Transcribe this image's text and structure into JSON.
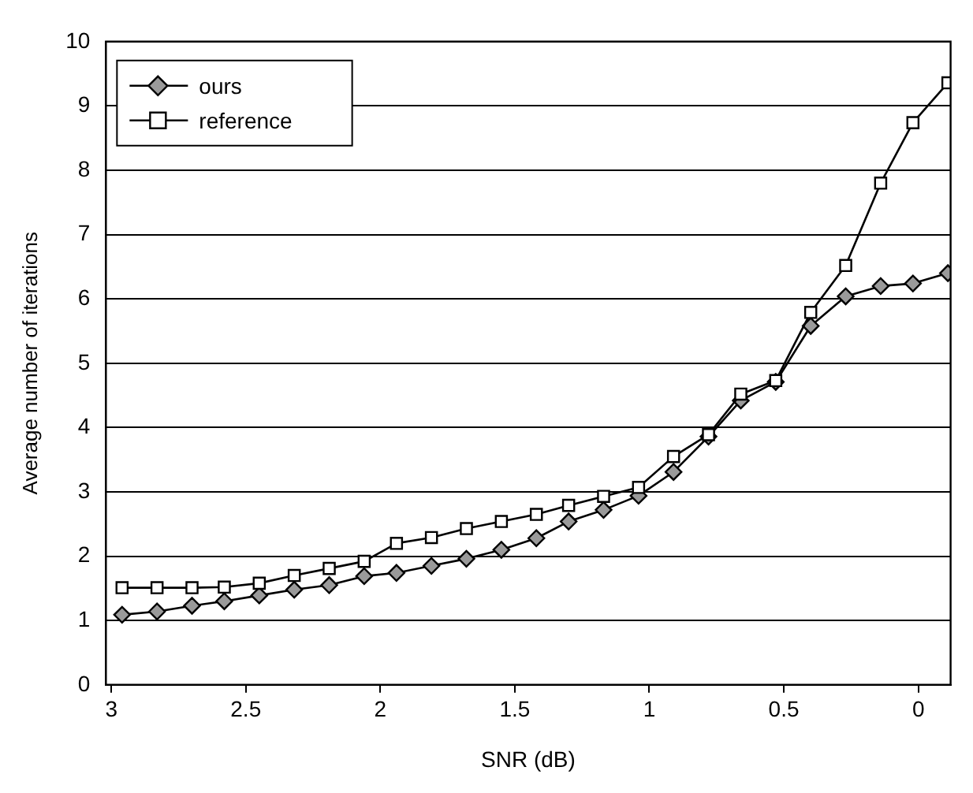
{
  "chart_data": {
    "type": "line",
    "xlabel": "SNR (dB)",
    "ylabel": "Average number of iterations",
    "x": [
      2.96,
      2.83,
      2.7,
      2.58,
      2.45,
      2.32,
      2.19,
      2.06,
      1.94,
      1.81,
      1.68,
      1.55,
      1.42,
      1.3,
      1.17,
      1.04,
      0.91,
      0.78,
      0.66,
      0.53,
      0.4,
      0.27,
      0.14,
      0.02,
      -0.11
    ],
    "series": [
      {
        "name": "ours",
        "color": "#000000",
        "marker": "diamond",
        "values": [
          1.09,
          1.14,
          1.23,
          1.3,
          1.39,
          1.48,
          1.55,
          1.69,
          1.74,
          1.85,
          1.96,
          2.1,
          2.28,
          2.54,
          2.72,
          2.94,
          3.31,
          3.86,
          4.42,
          4.71,
          5.58,
          6.04,
          6.2,
          6.24,
          6.4
        ]
      },
      {
        "name": "reference",
        "color": "#000000",
        "marker": "square",
        "values": [
          1.51,
          1.51,
          1.51,
          1.52,
          1.58,
          1.7,
          1.81,
          1.92,
          2.2,
          2.29,
          2.43,
          2.54,
          2.65,
          2.79,
          2.93,
          3.07,
          3.55,
          3.89,
          4.52,
          4.73,
          5.79,
          6.52,
          7.8,
          8.74,
          9.36
        ]
      }
    ],
    "xlim": [
      3.02,
      -0.12
    ],
    "xticks": [
      3,
      2.5,
      2,
      1.5,
      1,
      0.5,
      0
    ],
    "ylim": [
      0,
      10
    ],
    "yticks": [
      0,
      1,
      2,
      3,
      4,
      5,
      6,
      7,
      8,
      9,
      10
    ],
    "grid": "y",
    "legend": "top left",
    "line_style": "solid"
  }
}
